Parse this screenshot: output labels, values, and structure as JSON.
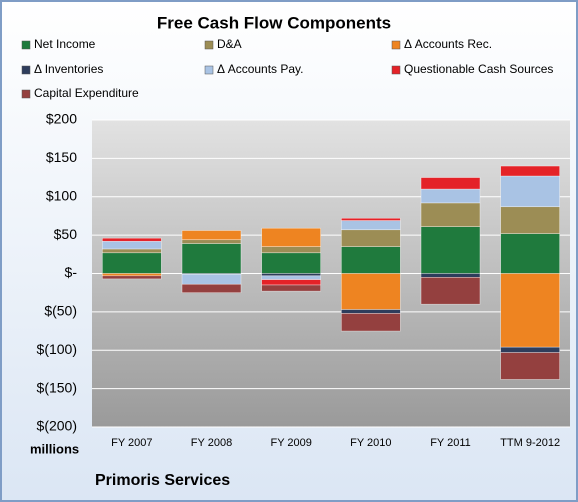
{
  "chart_data": {
    "type": "stacked_bar",
    "title": "Free Cash Flow Components",
    "subtitle": "Primoris Services",
    "y_label": "millions",
    "categories": [
      "FY 2007",
      "FY 2008",
      "FY 2009",
      "FY 2010",
      "FY 2011",
      "TTM 9-2012"
    ],
    "series": [
      {
        "name": "Net Income",
        "color": "#1f7a3d",
        "values": [
          27,
          39,
          27,
          35,
          61,
          52
        ]
      },
      {
        "name": "D&A",
        "color": "#9c8d55",
        "values": [
          5,
          5,
          8,
          22,
          31,
          35
        ]
      },
      {
        "name": "Δ Accounts Rec.",
        "color": "#ee8421",
        "values": [
          -3,
          12,
          24,
          -47,
          null,
          -96
        ]
      },
      {
        "name": "Δ Inventories",
        "color": "#2e3d5c",
        "values": [
          null,
          -1,
          -3,
          -5,
          -5,
          -7
        ]
      },
      {
        "name": "Δ Accounts Pay.",
        "color": "#a9c3e4",
        "values": [
          10,
          -13,
          -5,
          12,
          18,
          40
        ]
      },
      {
        "name": "Questionable Cash Sources",
        "color": "#e42228",
        "values": [
          4,
          null,
          -7,
          3,
          15,
          13
        ]
      },
      {
        "name": "Capital Expenditure",
        "color": "#94403f",
        "values": [
          -4,
          -11,
          -8,
          -23,
          -35,
          -35
        ]
      }
    ],
    "ylim": [
      -200,
      200
    ],
    "yticks": [
      {
        "value": 200,
        "label": "$200"
      },
      {
        "value": 150,
        "label": "$150"
      },
      {
        "value": 100,
        "label": "$100"
      },
      {
        "value": 50,
        "label": "$50"
      },
      {
        "value": 0,
        "label": "$-"
      },
      {
        "value": -50,
        "label": "$(50)"
      },
      {
        "value": -100,
        "label": "$(100)"
      },
      {
        "value": -150,
        "label": "$(150)"
      },
      {
        "value": -200,
        "label": "$(200)"
      }
    ],
    "grid": true
  }
}
